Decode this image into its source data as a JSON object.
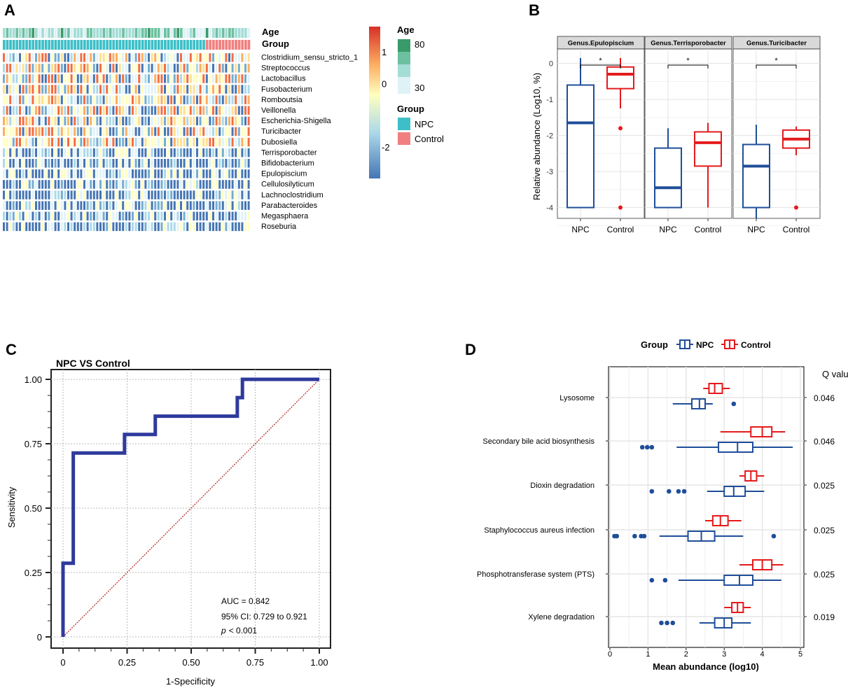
{
  "figure": {
    "panel_labels": [
      "A",
      "B",
      "C",
      "D"
    ]
  },
  "colors": {
    "npc": "#1f4e99",
    "control": "#e41a1c",
    "npc_annot": "#3ebfc8",
    "control_annot": "#f08080",
    "roc_line": "#2e3a9c",
    "diag_line": "#b22222"
  },
  "chart_data": [
    {
      "panel": "A",
      "type": "heatmap",
      "annotation_rows": [
        "Age",
        "Group"
      ],
      "rows": [
        "Clostridium_sensu_stricto_1",
        "Streptococcus",
        "Lactobacillus",
        "Fusobacterium",
        "Romboutsia",
        "Veillonella",
        "Escherichia-Shigella",
        "Turicibacter",
        "Dubosiella",
        "Terrisporobacter",
        "Bifidobacterium",
        "Epulopiscium",
        "Cellulosilyticum",
        "Lachnoclostridium",
        "Parabacteroides",
        "Megasphaera",
        "Roseburia"
      ],
      "n_samples": 77,
      "n_npc": 63,
      "n_control": 14,
      "color_scale": {
        "title": "",
        "ticks": [
          1,
          0,
          -2
        ],
        "range": [
          -3,
          1.8
        ]
      },
      "legend_age": {
        "title": "Age",
        "ticks": [
          80,
          30
        ]
      },
      "legend_group": {
        "title": "Group",
        "items": [
          "NPC",
          "Control"
        ]
      }
    },
    {
      "panel": "B",
      "type": "box",
      "ylabel": "Relative abundance (Log10, %)",
      "ylim": [
        -4.3,
        0.4
      ],
      "yticks": [
        0,
        -1,
        -2,
        -3,
        -4
      ],
      "categories": [
        "NPC",
        "Control"
      ],
      "significance": "*",
      "facets": [
        {
          "title": "Genus.Epulopiscium",
          "npc": {
            "min": -4.0,
            "q1": -4.0,
            "median": -1.65,
            "q3": -0.6,
            "max": 0.15,
            "outliers": []
          },
          "control": {
            "min": -1.25,
            "q1": -0.7,
            "median": -0.3,
            "q3": -0.1,
            "max": 0.15,
            "outliers": [
              -1.8,
              -4.0
            ]
          }
        },
        {
          "title": "Genus.Terrisporobacter",
          "npc": {
            "min": -4.0,
            "q1": -4.0,
            "median": -3.45,
            "q3": -2.35,
            "max": -1.8,
            "outliers": []
          },
          "control": {
            "min": -4.0,
            "q1": -2.85,
            "median": -2.2,
            "q3": -1.9,
            "max": -1.65,
            "outliers": []
          }
        },
        {
          "title": "Genus.Turicibacter",
          "npc": {
            "min": -4.3,
            "q1": -4.0,
            "median": -2.85,
            "q3": -2.25,
            "max": -1.7,
            "outliers": []
          },
          "control": {
            "min": -2.55,
            "q1": -2.35,
            "median": -2.1,
            "q3": -1.85,
            "max": -1.75,
            "outliers": [
              -4.0
            ]
          }
        }
      ]
    },
    {
      "panel": "C",
      "type": "line",
      "title": "NPC VS Control",
      "xlabel": "1-Specificity",
      "ylabel": "Sensitivity",
      "xlim": [
        0,
        1
      ],
      "ylim": [
        0,
        1
      ],
      "xticks": [
        "0",
        "0.25",
        "0.50",
        "0.75",
        "1.00"
      ],
      "yticks": [
        "0",
        "0.25",
        "0.50",
        "0.75",
        "1.00"
      ],
      "series": [
        {
          "name": "ROC",
          "x": [
            0,
            0,
            0.04,
            0.04,
            0.24,
            0.24,
            0.36,
            0.36,
            0.68,
            0.68,
            0.7,
            0.7,
            1.0
          ],
          "y": [
            0,
            0.286,
            0.286,
            0.714,
            0.714,
            0.786,
            0.786,
            0.857,
            0.857,
            0.929,
            0.929,
            1.0,
            1.0
          ]
        },
        {
          "name": "Reference",
          "x": [
            0,
            1
          ],
          "y": [
            0,
            1
          ]
        }
      ],
      "annotations": [
        "AUC = 0.842",
        "95% CI: 0.729 to 0.921",
        "< 0.001"
      ],
      "p_label": "p"
    },
    {
      "panel": "D",
      "type": "box",
      "orientation": "horizontal",
      "xlabel": "Mean abundance (log10)",
      "xlim": [
        0,
        5
      ],
      "xticks": [
        0,
        1,
        2,
        3,
        4,
        5
      ],
      "legend": {
        "title": "Group",
        "items": [
          "NPC",
          "Control"
        ]
      },
      "qvalue_header": "Q value",
      "categories": [
        "Lysosome",
        "Secondary bile acid biosynthesis",
        "Dioxin degradation",
        "Staphylococcus aureus infection",
        "Phosphotransferase system (PTS)",
        "Xylene degradation"
      ],
      "qvalues": [
        "0.046",
        "0.046",
        "0.025",
        "0.025",
        "0.025",
        "0.019"
      ],
      "series": [
        {
          "name": "Control",
          "boxes": [
            {
              "min": 2.45,
              "q1": 2.6,
              "median": 2.75,
              "q3": 2.95,
              "max": 3.15,
              "outliers": []
            },
            {
              "min": 2.9,
              "q1": 3.7,
              "median": 4.0,
              "q3": 4.25,
              "max": 4.6,
              "outliers": []
            },
            {
              "min": 3.4,
              "q1": 3.55,
              "median": 3.7,
              "q3": 3.85,
              "max": 4.05,
              "outliers": []
            },
            {
              "min": 2.5,
              "q1": 2.7,
              "median": 2.9,
              "q3": 3.1,
              "max": 3.45,
              "outliers": []
            },
            {
              "min": 3.4,
              "q1": 3.75,
              "median": 4.0,
              "q3": 4.25,
              "max": 4.55,
              "outliers": []
            },
            {
              "min": 3.0,
              "q1": 3.2,
              "median": 3.35,
              "q3": 3.5,
              "max": 3.7,
              "outliers": []
            }
          ]
        },
        {
          "name": "NPC",
          "boxes": [
            {
              "min": 1.65,
              "q1": 2.15,
              "median": 2.35,
              "q3": 2.5,
              "max": 2.7,
              "outliers": [
                3.25
              ]
            },
            {
              "min": 1.75,
              "q1": 2.85,
              "median": 3.35,
              "q3": 3.75,
              "max": 4.8,
              "outliers": [
                0.85,
                0.98,
                1.1
              ]
            },
            {
              "min": 2.55,
              "q1": 3.0,
              "median": 3.25,
              "q3": 3.55,
              "max": 4.05,
              "outliers": [
                1.1,
                1.55,
                1.8,
                1.95
              ]
            },
            {
              "min": 1.3,
              "q1": 2.05,
              "median": 2.4,
              "q3": 2.75,
              "max": 3.5,
              "outliers": [
                0.12,
                0.18,
                0.65,
                0.82,
                0.9,
                4.3
              ]
            },
            {
              "min": 1.8,
              "q1": 3.0,
              "median": 3.4,
              "q3": 3.75,
              "max": 4.5,
              "outliers": [
                1.1,
                1.45
              ]
            },
            {
              "min": 2.35,
              "q1": 2.75,
              "median": 3.0,
              "q3": 3.2,
              "max": 3.7,
              "outliers": [
                1.35,
                1.5,
                1.65
              ]
            }
          ]
        }
      ]
    }
  ]
}
